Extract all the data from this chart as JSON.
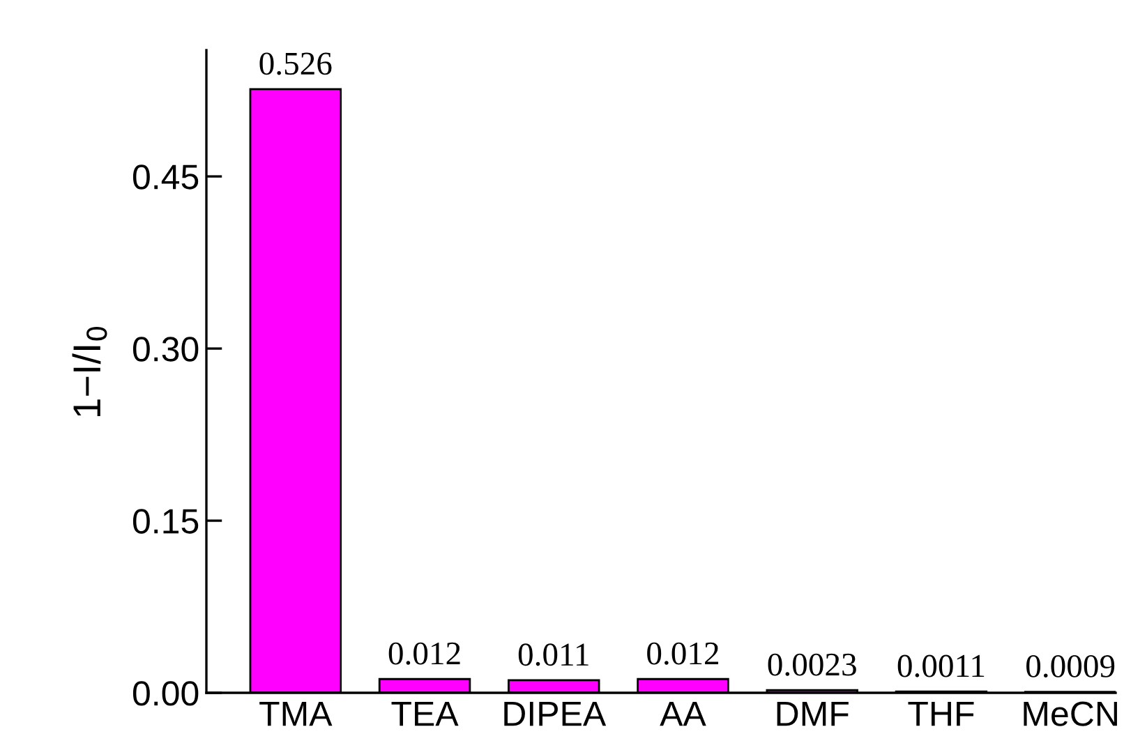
{
  "chart_data": {
    "type": "bar",
    "ylabel": "1−I/I$_{0}$",
    "categories": [
      "TMA",
      "TEA",
      "DIPEA",
      "AA",
      "DMF",
      "THF",
      "MeCN"
    ],
    "values": [
      0.526,
      0.012,
      0.011,
      0.012,
      0.0023,
      0.0011,
      0.0009
    ],
    "color": "#ff00ff",
    "data_labels": true,
    "ylim": [
      0,
      0.56
    ],
    "yticks": [
      {
        "value": 0,
        "label": "0.00"
      },
      {
        "value": 0.15,
        "label": "0.15"
      },
      {
        "value": 0.3,
        "label": "0.30"
      },
      {
        "value": 0.45,
        "label": "0.45"
      }
    ],
    "grid": false,
    "legend": false
  }
}
